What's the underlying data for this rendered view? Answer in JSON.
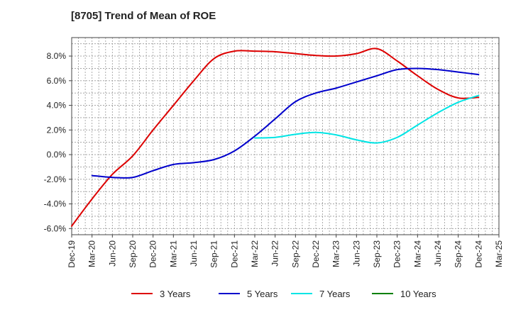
{
  "chart_data": {
    "type": "line",
    "title": "[8705]  Trend of Mean of ROE",
    "xlabel": "",
    "ylabel": "",
    "x_ticks": [
      "Dec-19",
      "Mar-20",
      "Jun-20",
      "Sep-20",
      "Dec-20",
      "Mar-21",
      "Jun-21",
      "Sep-21",
      "Dec-21",
      "Mar-22",
      "Jun-22",
      "Sep-22",
      "Dec-22",
      "Mar-23",
      "Jun-23",
      "Sep-23",
      "Dec-23",
      "Mar-24",
      "Jun-24",
      "Sep-24",
      "Dec-24",
      "Mar-25"
    ],
    "y_ticks": [
      -6,
      -4,
      -2,
      0,
      2,
      4,
      6,
      8
    ],
    "y_tick_labels": [
      "-6.0%",
      "-4.0%",
      "-2.0%",
      "0.0%",
      "2.0%",
      "4.0%",
      "6.0%",
      "8.0%"
    ],
    "ylim": [
      -6.5,
      9.5
    ],
    "grid": true,
    "legend_position": "bottom",
    "series": [
      {
        "name": "3 Years",
        "color": "#dd0000",
        "points": [
          [
            "Dec-19",
            -5.8
          ],
          [
            "Mar-20",
            -3.6
          ],
          [
            "Jun-20",
            -1.6
          ],
          [
            "Sep-20",
            -0.1
          ],
          [
            "Dec-20",
            2.0
          ],
          [
            "Mar-21",
            4.0
          ],
          [
            "Jun-21",
            6.0
          ],
          [
            "Sep-21",
            7.8
          ],
          [
            "Dec-21",
            8.4
          ],
          [
            "Mar-22",
            8.4
          ],
          [
            "Jun-22",
            8.35
          ],
          [
            "Sep-22",
            8.2
          ],
          [
            "Dec-22",
            8.05
          ],
          [
            "Mar-23",
            8.0
          ],
          [
            "Jun-23",
            8.2
          ],
          [
            "Sep-23",
            8.6
          ],
          [
            "Dec-23",
            7.6
          ],
          [
            "Mar-24",
            6.4
          ],
          [
            "Jun-24",
            5.3
          ],
          [
            "Sep-24",
            4.6
          ],
          [
            "Dec-24",
            4.65
          ]
        ]
      },
      {
        "name": "5 Years",
        "color": "#0000cc",
        "points": [
          [
            "Mar-20",
            -1.7
          ],
          [
            "Jun-20",
            -1.85
          ],
          [
            "Sep-20",
            -1.85
          ],
          [
            "Dec-20",
            -1.3
          ],
          [
            "Mar-21",
            -0.8
          ],
          [
            "Jun-21",
            -0.65
          ],
          [
            "Sep-21",
            -0.4
          ],
          [
            "Dec-21",
            0.3
          ],
          [
            "Mar-22",
            1.5
          ],
          [
            "Jun-22",
            2.9
          ],
          [
            "Sep-22",
            4.3
          ],
          [
            "Dec-22",
            5.0
          ],
          [
            "Mar-23",
            5.4
          ],
          [
            "Jun-23",
            5.9
          ],
          [
            "Sep-23",
            6.4
          ],
          [
            "Dec-23",
            6.9
          ],
          [
            "Mar-24",
            7.0
          ],
          [
            "Jun-24",
            6.9
          ],
          [
            "Sep-24",
            6.7
          ],
          [
            "Dec-24",
            6.5
          ]
        ]
      },
      {
        "name": "7 Years",
        "color": "#00e5e5",
        "points": [
          [
            "Mar-22",
            1.35
          ],
          [
            "Jun-22",
            1.4
          ],
          [
            "Sep-22",
            1.65
          ],
          [
            "Dec-22",
            1.8
          ],
          [
            "Mar-23",
            1.6
          ],
          [
            "Jun-23",
            1.2
          ],
          [
            "Sep-23",
            0.95
          ],
          [
            "Dec-23",
            1.4
          ],
          [
            "Mar-24",
            2.4
          ],
          [
            "Jun-24",
            3.4
          ],
          [
            "Sep-24",
            4.25
          ],
          [
            "Dec-24",
            4.8
          ]
        ]
      },
      {
        "name": "10 Years",
        "color": "#008000",
        "points": []
      }
    ]
  }
}
